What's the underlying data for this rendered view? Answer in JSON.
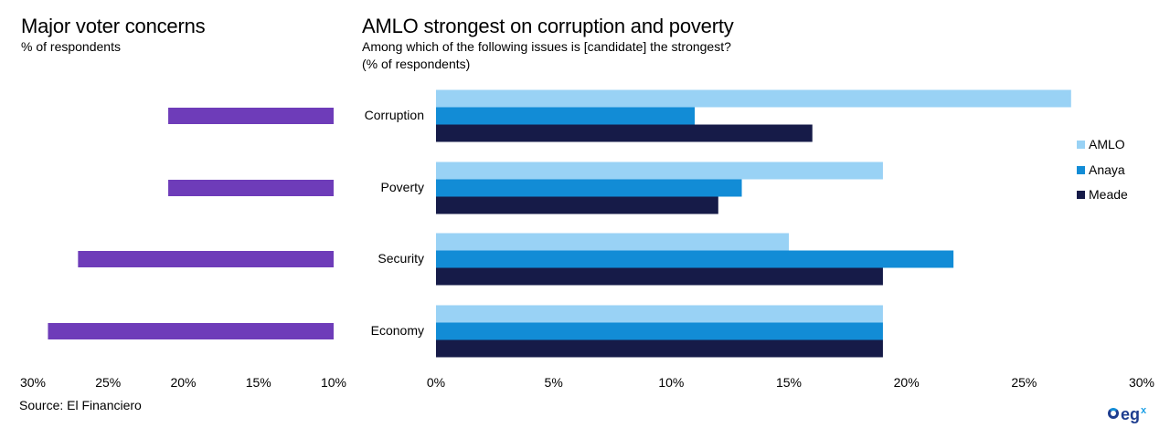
{
  "left_chart": {
    "title": "Major voter concerns",
    "subtitle": "% of respondents"
  },
  "right_chart": {
    "title": "AMLO strongest on corruption and poverty",
    "subtitle": "Among which of the following issues is [candidate] the strongest?",
    "subtitle2": "(% of respondents)"
  },
  "source": "Source: El Financiero",
  "logo_text": "eg",
  "logo_sup": "x",
  "chart_data": [
    {
      "type": "bar",
      "orientation": "horizontal-reversed",
      "title": "Major voter concerns",
      "subtitle": "% of respondents",
      "categories": [
        "Corruption",
        "Poverty",
        "Security",
        "Economy"
      ],
      "values": [
        21,
        21,
        27,
        29
      ],
      "xlim": [
        10,
        30
      ],
      "x_ticks": [
        "30%",
        "25%",
        "20%",
        "15%",
        "10%"
      ],
      "x_tick_values": [
        30,
        25,
        20,
        15,
        10
      ],
      "color": "#6E3CB9",
      "grid": false
    },
    {
      "type": "bar",
      "orientation": "horizontal",
      "title": "AMLO strongest on corruption and poverty",
      "subtitle": "Among which of the following issues is [candidate] the strongest? (% of respondents)",
      "categories": [
        "Corruption",
        "Poverty",
        "Security",
        "Economy"
      ],
      "series": [
        {
          "name": "AMLO",
          "values": [
            27,
            19,
            15,
            19
          ],
          "color": "#99D2F5"
        },
        {
          "name": "Anaya",
          "values": [
            11,
            13,
            22,
            19
          ],
          "color": "#128CD6"
        },
        {
          "name": "Meade",
          "values": [
            16,
            12,
            19,
            19
          ],
          "color": "#161B48"
        }
      ],
      "xlim": [
        0,
        30
      ],
      "x_ticks": [
        "0%",
        "5%",
        "10%",
        "15%",
        "20%",
        "25%",
        "30%"
      ],
      "x_tick_values": [
        0,
        5,
        10,
        15,
        20,
        25,
        30
      ],
      "legend": "right",
      "grid": false
    }
  ]
}
